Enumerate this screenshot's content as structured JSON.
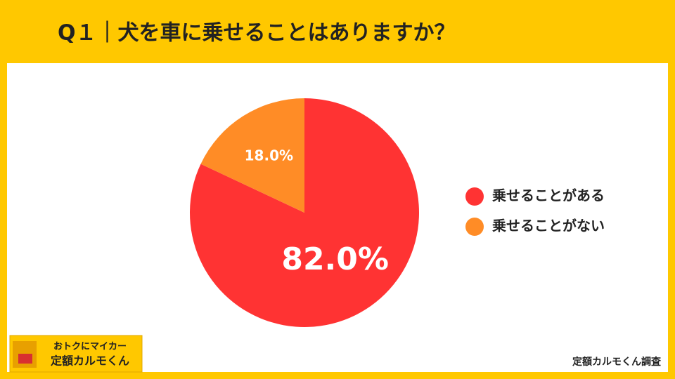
{
  "chart_data": {
    "type": "pie",
    "title": "Q１｜犬を車に乗せることはありますか？",
    "categories": [
      "乗せることがある",
      "乗せることがない"
    ],
    "values": [
      82.0,
      18.0
    ],
    "value_labels": [
      "82.0%",
      "18.0%"
    ],
    "colors": [
      "#ff3333",
      "#ff8c26"
    ],
    "legend": "right"
  },
  "logo": {
    "line1": "おトクにマイカー",
    "line2": "定額カルモくん"
  },
  "source": "定額カルモくん調査"
}
